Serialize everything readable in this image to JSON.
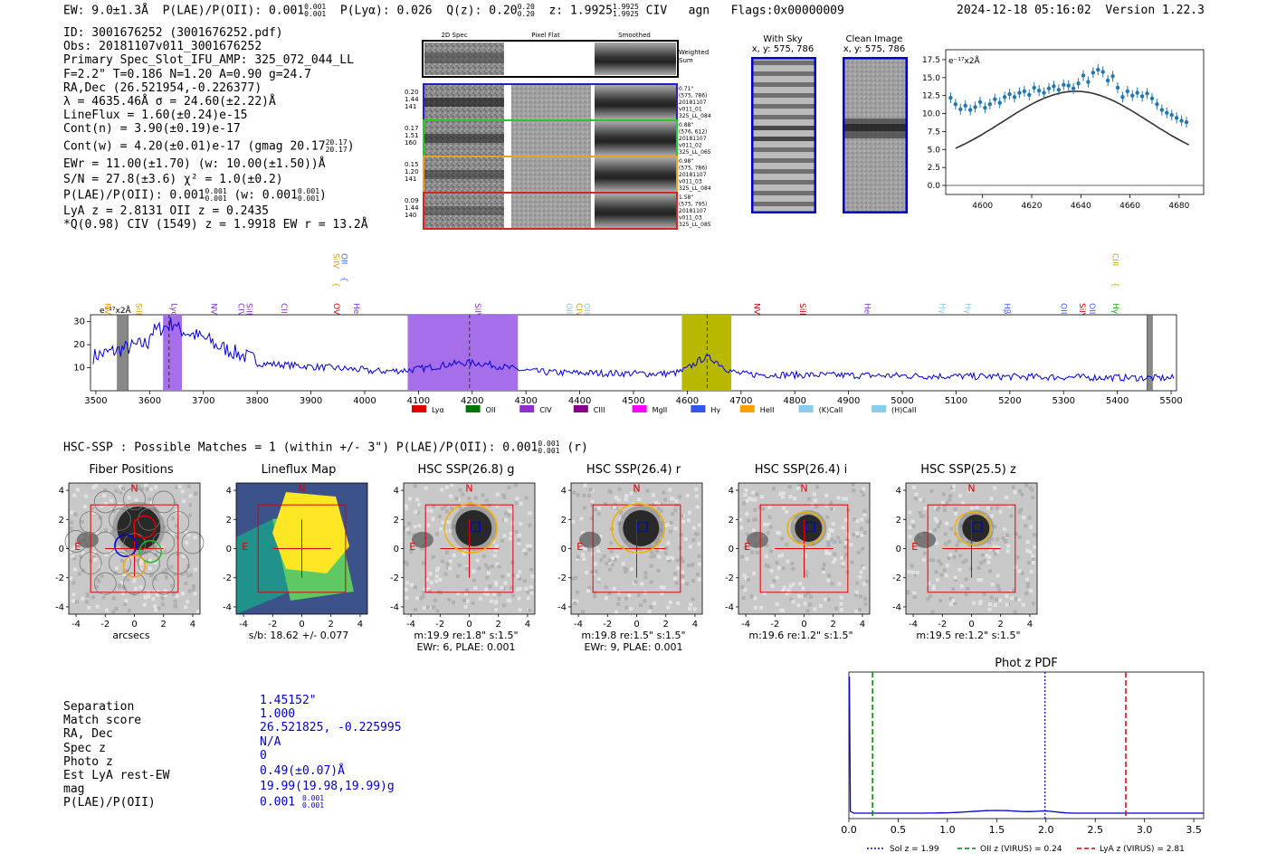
{
  "header": {
    "ew": "EW: 9.0±1.3Å",
    "plae": "P(LAE)/P(OII): 0.001",
    "plae_frac": [
      "0.001",
      "0.001"
    ],
    "plya": "P(Lyα): 0.026",
    "qz": "Q(z): 0.20",
    "qz_frac": [
      "0.20",
      "0.20"
    ],
    "z": "z: 1.9925",
    "z_frac": [
      "1.9925",
      "1.9925"
    ],
    "civ": "CIV",
    "agn": "agn",
    "flags": "Flags:0x00000009",
    "date": "2024-12-18 05:16:02",
    "version": "Version 1.22.3"
  },
  "info": {
    "id": "ID: 3001676252 (3001676252.pdf)",
    "obs": "Obs: 20181107v011_3001676252",
    "primary": "Primary Spec_Slot_IFU_AMP: 325_072_044_LL",
    "fwhm": "F=2.2\"  T=0.186  N=1.20  A=0.90  g=24.7",
    "radec": "RA,Dec (26.521954,-0.226377)",
    "lambda": "λ = 4635.46Å  σ = 24.60(±2.22)Å",
    "lineflux": "LineFlux = 1.60(±0.24)e-15",
    "contn": "Cont(n) = 3.90(±0.19)e-17",
    "contw": "Cont(w) = 4.20(±0.01)e-17 (gmag 20.17",
    "contw_frac": [
      "20.17",
      "20.17"
    ],
    "contw_end": ")",
    "ewr": "EWr = 11.00(±1.70) (w: 10.00(±1.50))Å",
    "sn": "S/N = 27.8(±3.6)  χ² = 1.0(±0.2)",
    "plae": "P(LAE)/P(OII): 0.001",
    "plae_frac": [
      "0.001",
      "0.001"
    ],
    "plae_w": " (w: 0.001",
    "plae_w_frac": [
      "0.001",
      "0.001"
    ],
    "plae_end": ")",
    "lya": "LyA z = 2.8131  OII z = 0.2435",
    "q": "*Q(0.98) CIV (1549) z = 1.9918  EW r = 13.2Å"
  },
  "cutouts2d": {
    "col_labels": [
      "2D Spec",
      "Pixel Flat",
      "Smoothed"
    ],
    "weighted_sum": "Weighted Sum",
    "rows": [
      {
        "left": [
          "0.20",
          "1.44",
          "141"
        ],
        "right": [
          "0.71\"",
          "(575, 786)",
          "20181107",
          "v011_01",
          "325_LL_084"
        ],
        "color": "#2222cc"
      },
      {
        "left": [
          "0.17",
          "1.51",
          "160"
        ],
        "right": [
          "0.88\"",
          "(576, 612)",
          "20181107",
          "v011_02",
          "325_LL_065"
        ],
        "color": "#22cc22"
      },
      {
        "left": [
          "0.15",
          "1.20",
          "141"
        ],
        "right": [
          "0.98\"",
          "(575, 786)",
          "20181107",
          "v011_03",
          "325_LL_084"
        ],
        "color": "#f0a020"
      },
      {
        "left": [
          "0.09",
          "1.44",
          "140"
        ],
        "right": [
          "1.58\"",
          "(575, 795)",
          "20181107",
          "v011_03",
          "325_LL_085"
        ],
        "color": "#dd2222"
      }
    ]
  },
  "sky": {
    "with_sky": "With Sky",
    "with_sky_xy": "x, y: 575, 786",
    "clean": "Clean Image",
    "clean_xy": "x, y: 575, 786"
  },
  "zoom_plot": {
    "unit": "e⁻¹⁷x2Å",
    "xticks": [
      "4600",
      "4620",
      "4640",
      "4660",
      "4680"
    ],
    "yticks": [
      "0.0",
      "2.5",
      "5.0",
      "7.5",
      "10.0",
      "12.5",
      "15.0",
      "17.5"
    ],
    "xlim": [
      4585,
      4690
    ],
    "ylim": [
      0,
      18
    ],
    "points": [
      [
        4587,
        12.2
      ],
      [
        4589,
        11.3
      ],
      [
        4591,
        10.6
      ],
      [
        4593,
        11.1
      ],
      [
        4595,
        10.5
      ],
      [
        4597,
        10.9
      ],
      [
        4599,
        11.6
      ],
      [
        4601,
        10.8
      ],
      [
        4603,
        11.3
      ],
      [
        4605,
        12.0
      ],
      [
        4607,
        11.5
      ],
      [
        4609,
        12.3
      ],
      [
        4611,
        12.7
      ],
      [
        4613,
        12.3
      ],
      [
        4615,
        12.9
      ],
      [
        4617,
        13.1
      ],
      [
        4619,
        12.6
      ],
      [
        4621,
        13.6
      ],
      [
        4623,
        13.2
      ],
      [
        4625,
        12.9
      ],
      [
        4627,
        13.5
      ],
      [
        4629,
        13.8
      ],
      [
        4631,
        13.3
      ],
      [
        4633,
        14.0
      ],
      [
        4635,
        13.9
      ],
      [
        4637,
        13.5
      ],
      [
        4639,
        14.2
      ],
      [
        4641,
        15.3
      ],
      [
        4643,
        14.4
      ],
      [
        4645,
        15.7
      ],
      [
        4647,
        16.1
      ],
      [
        4649,
        15.8
      ],
      [
        4651,
        14.6
      ],
      [
        4653,
        15.2
      ],
      [
        4655,
        13.6
      ],
      [
        4657,
        12.3
      ],
      [
        4659,
        13.1
      ],
      [
        4661,
        12.5
      ],
      [
        4663,
        12.9
      ],
      [
        4665,
        12.4
      ],
      [
        4667,
        12.8
      ],
      [
        4669,
        12.1
      ],
      [
        4671,
        11.3
      ],
      [
        4673,
        10.5
      ],
      [
        4675,
        10.1
      ],
      [
        4677,
        9.8
      ],
      [
        4679,
        9.4
      ],
      [
        4681,
        9.0
      ],
      [
        4683,
        8.8
      ]
    ],
    "model": {
      "peak": 13.1,
      "center": 4638,
      "sigma": 24.6,
      "base": 2.5
    }
  },
  "spectrum": {
    "unit": "e⁻¹⁷x2Å",
    "xticks": [
      "3500",
      "3600",
      "3700",
      "3800",
      "3900",
      "4000",
      "4100",
      "4200",
      "4300",
      "4400",
      "4500",
      "4600",
      "4700",
      "4800",
      "4900",
      "5000",
      "5100",
      "5200",
      "5300",
      "5400",
      "5500"
    ],
    "yticks": [
      "10",
      "20",
      "30"
    ],
    "xlim": [
      3490,
      5510
    ],
    "ylim": [
      0,
      33
    ],
    "lines": [
      {
        "label": "NV",
        "x": 3512,
        "color": "#e0a000",
        "hi": false
      },
      {
        "label": "SiII",
        "x": 3570,
        "color": "#e0a000",
        "hi": false
      },
      {
        "label": "Lyα",
        "x": 3636,
        "color": "#8e2fd0",
        "hi": false
      },
      {
        "label": "NV",
        "x": 3710,
        "color": "#8e2fd0",
        "hi": false
      },
      {
        "label": "CIV",
        "x": 3760,
        "color": "#8e2fd0",
        "hi": false
      },
      {
        "label": "SiII",
        "x": 3775,
        "color": "#8e2fd0",
        "hi": false
      },
      {
        "label": "CII",
        "x": 3840,
        "color": "#8e2fd0",
        "hi": false
      },
      {
        "label": "SiIV",
        "x": 3937,
        "color": "#e0a000",
        "hi": true
      },
      {
        "label": "OII",
        "x": 3952,
        "color": "#4060ff",
        "hi": true
      },
      {
        "label": "OVI",
        "x": 3938,
        "color": "#cc0000",
        "hi": false
      },
      {
        "label": "HeII",
        "x": 3975,
        "color": "#8e2fd0",
        "hi": false
      },
      {
        "label": "SiIV",
        "x": 4200,
        "color": "#8e2fd0",
        "hi": false
      },
      {
        "label": "OIII",
        "x": 4370,
        "color": "#88ccee",
        "hi": false
      },
      {
        "label": "CIV",
        "x": 4389,
        "color": "#e0a000",
        "hi": false
      },
      {
        "label": "OIII",
        "x": 4403,
        "color": "#88ccee",
        "hi": false
      },
      {
        "label": "NV",
        "x": 4720,
        "color": "#cc0000",
        "hi": false
      },
      {
        "label": "SiII",
        "x": 4805,
        "color": "#cc0000",
        "hi": false
      },
      {
        "label": "HeII",
        "x": 4925,
        "color": "#8e2fd0",
        "hi": false
      },
      {
        "label": "Hγ",
        "x": 5065,
        "color": "#88ccee",
        "hi": false
      },
      {
        "label": "Hγ",
        "x": 5112,
        "color": "#88ccee",
        "hi": false
      },
      {
        "label": "Hβ",
        "x": 5185,
        "color": "#4060ff",
        "hi": false
      },
      {
        "label": "OIII",
        "x": 5290,
        "color": "#4060ff",
        "hi": false
      },
      {
        "label": "SiIV",
        "x": 5325,
        "color": "#cc0000",
        "hi": false
      },
      {
        "label": "OIII",
        "x": 5343,
        "color": "#4060ff",
        "hi": false
      },
      {
        "label": "CIII",
        "x": 5386,
        "color": "#e0a000",
        "hi": true
      },
      {
        "label": "Hγ",
        "x": 5387,
        "color": "#22aa22",
        "hi": false
      }
    ],
    "bands": [
      {
        "x0": 3625,
        "x1": 3660,
        "color": "#a66ee8"
      },
      {
        "x0": 4080,
        "x1": 4285,
        "color": "#a66ee8"
      },
      {
        "x0": 4590,
        "x1": 4682,
        "color": "#b8b800"
      }
    ],
    "dashed": [
      3636,
      4195,
      4637
    ],
    "hatched": [
      [
        3540,
        3560
      ],
      [
        5455,
        5465
      ]
    ],
    "legend": [
      {
        "label": "Lyα",
        "color": "#dd0000"
      },
      {
        "label": "OII",
        "color": "#007700"
      },
      {
        "label": "CIV",
        "color": "#8e2fd0"
      },
      {
        "label": "CIII",
        "color": "#880088"
      },
      {
        "label": "MgII",
        "color": "#ff00ff"
      },
      {
        "label": "Hγ",
        "color": "#3355ee"
      },
      {
        "label": "HeII",
        "color": "#ffa000"
      },
      {
        "label": "(K)CaII",
        "color": "#88ccee"
      },
      {
        "label": "(H)CaII",
        "color": "#88ccee"
      }
    ]
  },
  "hsc": {
    "title": "HSC-SSP : Possible Matches = 1 (within +/- 3\")  P(LAE)/P(OII): 0.001",
    "title_frac": [
      "0.001",
      "0.001"
    ],
    "title_end": "(r)",
    "axis_ticks": [
      "4",
      "2",
      "0",
      "-2",
      "-4"
    ],
    "x_ticks": [
      "-4",
      "-2",
      "0",
      "2",
      "4"
    ],
    "panels": [
      {
        "title": "Fiber Positions",
        "cap1": "arcsecs",
        "cap2": ""
      },
      {
        "title": "Lineflux Map",
        "cap1": "s/b: 18.62 +/- 0.077",
        "cap2": ""
      },
      {
        "title": "HSC SSP(26.8) g",
        "cap1": "m:19.9  re:1.8\"  s:1.5\"",
        "cap2": "EWr: 6, PLAE: 0.001"
      },
      {
        "title": "HSC SSP(26.4) r",
        "cap1": "m:19.8  re:1.5\"  s:1.5\"",
        "cap2": "EWr: 9, PLAE: 0.001"
      },
      {
        "title": "HSC SSP(26.4) i",
        "cap1": "m:19.6  re:1.2\"  s:1.5\"",
        "cap2": ""
      },
      {
        "title": "HSC SSP(25.5) z",
        "cap1": "m:19.5  re:1.2\"  s:1.5\"",
        "cap2": ""
      }
    ],
    "n_label": "N",
    "e_label": "E"
  },
  "match": {
    "labels": [
      "Separation",
      "Match score",
      "RA, Dec",
      "Spec z",
      "Photo z",
      "Est LyA rest-EW",
      "mag",
      "P(LAE)/P(OII)"
    ],
    "values": [
      "1.45152\"",
      "1.000",
      "26.521825, -0.225995",
      "N/A",
      "0",
      "0.49(±0.07)Å",
      "19.99(19.98,19.99)g",
      "0.001"
    ],
    "plae_frac": [
      "0.001",
      "0.001"
    ]
  },
  "photoz": {
    "title": "Phot z PDF",
    "xticks": [
      "0.0",
      "0.5",
      "1.0",
      "1.5",
      "2.0",
      "2.5",
      "3.0",
      "3.5"
    ],
    "xlim": [
      0,
      3.6
    ],
    "sol_z": 1.99,
    "oii_z": 0.24,
    "lya_z": 2.81,
    "legend": [
      "Sol z = 1.99",
      "OII z (VIRUS) = 0.24",
      "LyA z (VIRUS) = 2.81"
    ],
    "colors": {
      "sol": "#0000cc",
      "oii": "#008800",
      "lya": "#dd0000",
      "pdf": "#0000cc"
    }
  }
}
